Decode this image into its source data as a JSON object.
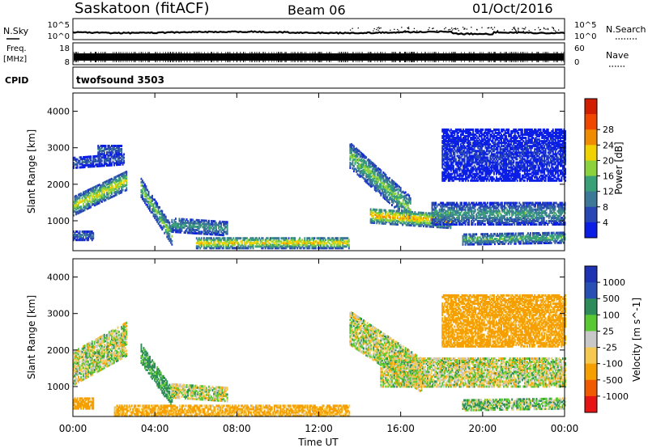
{
  "header": {
    "station": "Saskatoon (fitACF)",
    "beam": "Beam 06",
    "date": "01/Oct/2016"
  },
  "time_axis": {
    "label": "Time UT",
    "ticks": [
      "00:00",
      "04:00",
      "08:00",
      "12:00",
      "16:00",
      "20:00",
      "00:00"
    ],
    "range_hours": [
      0,
      24
    ]
  },
  "noise_panel": {
    "left_label": "N.Sky",
    "right_label": "N.Search",
    "left_ticks": [
      "10^5",
      "10^0"
    ],
    "right_ticks": [
      "10^5",
      "10^0"
    ]
  },
  "freq_panel": {
    "left_label_1": "Freq.",
    "left_label_2": "[MHz]",
    "left_ticks": [
      "18",
      "8"
    ],
    "right_label": "Nave",
    "right_ticks": [
      "60",
      "0"
    ]
  },
  "cpid_panel": {
    "label": "CPID",
    "program": "twofsound 3503"
  },
  "range_axis": {
    "label": "Slant Range [km]",
    "ticks": [
      1000,
      2000,
      3000,
      4000
    ],
    "range_km": [
      180,
      4500
    ]
  },
  "colors": {
    "power": [
      "#0a1ee6",
      "#2846b4",
      "#3c7898",
      "#3aa078",
      "#8cd23c",
      "#f0d200",
      "#f08c00",
      "#f04600",
      "#d21e00"
    ],
    "velocity": [
      "#e61414",
      "#f05a00",
      "#f5a000",
      "#f5c850",
      "#c8c8c8",
      "#c8c8c8",
      "#5ac832",
      "#2d8c5a",
      "#2850b4",
      "#1e32b4"
    ],
    "axis": "#000000"
  },
  "power_bar": {
    "label": "Power [dB]",
    "ticks": [
      "4",
      "8",
      "12",
      "16",
      "20",
      "24",
      "28"
    ]
  },
  "velocity_bar": {
    "label": "Velocity [m s^-1]",
    "ticks": [
      "-1000",
      "-500",
      "-100",
      "-25",
      "25",
      "100",
      "500",
      "1000"
    ]
  },
  "chart_data": [
    {
      "type": "heatmap",
      "title": "Power [dB]",
      "xlabel": "Time UT",
      "ylabel": "Slant Range [km]",
      "xlim": [
        0,
        24
      ],
      "ylim": [
        180,
        4500
      ],
      "features": [
        {
          "start_hr": 0.0,
          "end_hr": 2.6,
          "center_km_start": 1400,
          "center_km_end": 2100,
          "width_km": 500,
          "peak_db": 24
        },
        {
          "start_hr": 0.0,
          "end_hr": 2.5,
          "center_km_start": 2600,
          "center_km_end": 2700,
          "width_km": 300,
          "peak_db": 10
        },
        {
          "start_hr": 0.0,
          "end_hr": 1.0,
          "center_km_start": 600,
          "center_km_end": 600,
          "width_km": 250,
          "peak_db": 12
        },
        {
          "start_hr": 1.2,
          "end_hr": 2.4,
          "center_km_start": 2950,
          "center_km_end": 2950,
          "width_km": 250,
          "peak_db": 12
        },
        {
          "start_hr": 3.3,
          "end_hr": 4.8,
          "center_km_start": 1900,
          "center_km_end": 600,
          "width_km": 500,
          "peak_db": 20
        },
        {
          "start_hr": 4.8,
          "end_hr": 7.5,
          "center_km_start": 900,
          "center_km_end": 800,
          "width_km": 400,
          "peak_db": 16
        },
        {
          "start_hr": 6.0,
          "end_hr": 13.5,
          "center_km_start": 400,
          "center_km_end": 400,
          "width_km": 300,
          "peak_db": 26
        },
        {
          "start_hr": 13.5,
          "end_hr": 16.5,
          "center_km_start": 2800,
          "center_km_end": 1300,
          "width_km": 700,
          "peak_db": 20
        },
        {
          "start_hr": 14.5,
          "end_hr": 18.5,
          "center_km_start": 1150,
          "center_km_end": 1000,
          "width_km": 400,
          "peak_db": 28
        },
        {
          "start_hr": 17.5,
          "end_hr": 24.0,
          "center_km_start": 1200,
          "center_km_end": 1200,
          "width_km": 600,
          "peak_db": 16
        },
        {
          "start_hr": 18.0,
          "end_hr": 24.0,
          "center_km_start": 2800,
          "center_km_end": 2800,
          "width_km": 1400,
          "peak_db": 6
        },
        {
          "start_hr": 19.0,
          "end_hr": 24.0,
          "center_km_start": 500,
          "center_km_end": 550,
          "width_km": 300,
          "peak_db": 18
        }
      ]
    },
    {
      "type": "heatmap",
      "title": "Velocity [m s^-1]",
      "xlabel": "Time UT",
      "ylabel": "Slant Range [km]",
      "xlim": [
        0,
        24
      ],
      "ylim": [
        180,
        4500
      ],
      "features": [
        {
          "start_hr": 0.0,
          "end_hr": 2.6,
          "center_km_start": 1500,
          "center_km_end": 2300,
          "width_km": 900,
          "velocity_ms": 0
        },
        {
          "start_hr": 0.0,
          "end_hr": 1.0,
          "center_km_start": 550,
          "center_km_end": 550,
          "width_km": 300,
          "velocity_ms": -300
        },
        {
          "start_hr": 3.3,
          "end_hr": 4.8,
          "center_km_start": 1900,
          "center_km_end": 700,
          "width_km": 500,
          "velocity_ms": 150
        },
        {
          "start_hr": 4.8,
          "end_hr": 7.5,
          "center_km_start": 900,
          "center_km_end": 800,
          "width_km": 400,
          "velocity_ms": 0
        },
        {
          "start_hr": 2.0,
          "end_hr": 13.5,
          "center_km_start": 350,
          "center_km_end": 350,
          "width_km": 300,
          "velocity_ms": -150
        },
        {
          "start_hr": 13.5,
          "end_hr": 17.0,
          "center_km_start": 2600,
          "center_km_end": 1300,
          "width_km": 900,
          "velocity_ms": 0
        },
        {
          "start_hr": 15.0,
          "end_hr": 24.0,
          "center_km_start": 1400,
          "center_km_end": 1400,
          "width_km": 800,
          "velocity_ms": 0
        },
        {
          "start_hr": 18.0,
          "end_hr": 24.0,
          "center_km_start": 2800,
          "center_km_end": 2800,
          "width_km": 1400,
          "velocity_ms": -200
        },
        {
          "start_hr": 19.0,
          "end_hr": 24.0,
          "center_km_start": 500,
          "center_km_end": 550,
          "width_km": 300,
          "velocity_ms": 50
        }
      ]
    }
  ]
}
